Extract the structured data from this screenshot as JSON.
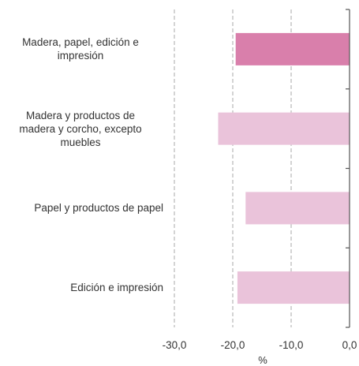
{
  "chart_data": {
    "type": "bar",
    "orientation": "horizontal",
    "categories": [
      "Madera, papel, edición e impresión",
      "Madera y productos de madera y corcho, excepto muebles",
      "Papel y productos de papel",
      "Edición e impresión"
    ],
    "category_lines": [
      [
        "Madera, papel, edición e",
        "impresión"
      ],
      [
        "Madera y productos de",
        "madera y corcho, excepto",
        "muebles"
      ],
      [
        "Papel y productos de papel"
      ],
      [
        "Edición e impresión"
      ]
    ],
    "values": [
      -19.5,
      -22.5,
      -17.8,
      -19.2
    ],
    "xlim": [
      -30,
      0
    ],
    "xticks": [
      -30,
      -20,
      -10,
      0
    ],
    "xtick_labels": [
      "-30,0",
      "-20,0",
      "-10,0",
      "0,0"
    ],
    "xlabel": "%",
    "grid": "vertical dashed",
    "colors": {
      "highlight": "#d97fab",
      "normal": "#eac3da",
      "axis": "#555555",
      "grid": "#aaaaaa"
    },
    "highlighted_index": 0
  }
}
